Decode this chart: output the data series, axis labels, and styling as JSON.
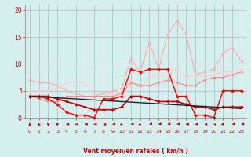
{
  "x": [
    0,
    1,
    2,
    3,
    4,
    5,
    6,
    7,
    8,
    9,
    10,
    11,
    12,
    13,
    14,
    15,
    16,
    17,
    18,
    19,
    20,
    21,
    22,
    23
  ],
  "series": [
    {
      "name": "light_pink_gust",
      "color": "#ffaaaa",
      "linewidth": 0.8,
      "marker": "D",
      "markersize": 1.5,
      "y": [
        7,
        6.5,
        6.5,
        6,
        5,
        4.5,
        4,
        4,
        4.5,
        5,
        5.5,
        11,
        8.5,
        14,
        9,
        15.5,
        18,
        15.5,
        8,
        8.5,
        9,
        12,
        13,
        10.5
      ]
    },
    {
      "name": "light_pink_avg",
      "color": "#ffcccc",
      "linewidth": 0.8,
      "marker": "D",
      "markersize": 1.5,
      "y": [
        5,
        5,
        5,
        5.5,
        6.5,
        6.5,
        6.5,
        4,
        4,
        4.5,
        5,
        7,
        5.5,
        7.5,
        8,
        8,
        9,
        7.5,
        8,
        7.5,
        8,
        8.5,
        8.5,
        9
      ]
    },
    {
      "name": "pink_mid",
      "color": "#ff8888",
      "linewidth": 0.8,
      "marker": "D",
      "markersize": 1.5,
      "y": [
        4,
        3.5,
        3,
        3,
        4,
        4,
        4,
        4,
        4,
        4,
        4.5,
        6.5,
        6,
        6,
        6.5,
        7,
        6.5,
        6,
        6,
        7,
        7.5,
        7.5,
        8,
        8.5
      ]
    },
    {
      "name": "red_gust",
      "color": "#ff0000",
      "linewidth": 1.0,
      "marker": "D",
      "markersize": 2.0,
      "y": [
        4,
        4,
        3.5,
        2.5,
        1,
        0.5,
        0.5,
        0,
        3.5,
        3.5,
        4,
        9,
        8.5,
        9,
        9,
        9,
        4,
        4,
        0.5,
        0.5,
        0,
        5,
        5,
        5
      ]
    },
    {
      "name": "dark_red_avg",
      "color": "#cc0000",
      "linewidth": 1.2,
      "marker": "D",
      "markersize": 2.0,
      "y": [
        4,
        4,
        4,
        3.5,
        3,
        2.5,
        2,
        1.5,
        1.5,
        1.5,
        2,
        4,
        4,
        3.5,
        3,
        3,
        3,
        2.5,
        2,
        2,
        1.5,
        2,
        2,
        2
      ]
    },
    {
      "name": "black_trend",
      "color": "#222222",
      "linewidth": 1.0,
      "marker": null,
      "markersize": 0,
      "y": [
        4.0,
        3.9,
        3.8,
        3.7,
        3.6,
        3.5,
        3.4,
        3.3,
        3.2,
        3.1,
        3.0,
        2.9,
        2.8,
        2.7,
        2.6,
        2.5,
        2.4,
        2.3,
        2.2,
        2.1,
        2.0,
        1.9,
        1.8,
        1.7
      ]
    }
  ],
  "wind_arrow_angles": [
    180,
    200,
    200,
    220,
    270,
    270,
    270,
    270,
    260,
    280,
    300,
    290,
    300,
    290,
    285,
    285,
    280,
    270,
    270,
    265,
    260,
    300,
    280,
    275
  ],
  "xlim": [
    -0.5,
    23.5
  ],
  "ylim": [
    0,
    21
  ],
  "yticks": [
    0,
    5,
    10,
    15,
    20
  ],
  "xticks": [
    0,
    1,
    2,
    3,
    4,
    5,
    6,
    7,
    8,
    9,
    10,
    11,
    12,
    13,
    14,
    15,
    16,
    17,
    18,
    19,
    20,
    21,
    22,
    23
  ],
  "xlabel": "Vent moyen/en rafales ( km/h )",
  "bg_color": "#d5eeee",
  "grid_color": "#aaaaaa",
  "tick_color": "#cc0000",
  "label_color": "#cc0000",
  "arrow_color": "#cc0000"
}
